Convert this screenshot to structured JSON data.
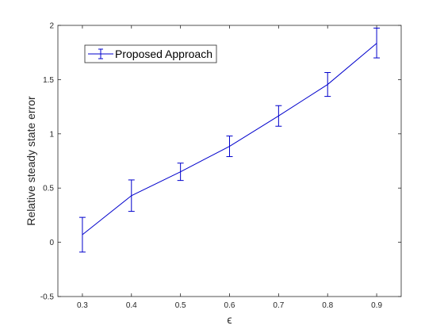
{
  "colors": {
    "series": "#0000cc",
    "axis": "#262626",
    "background": "#ffffff"
  },
  "chart_data": {
    "type": "line",
    "title": "",
    "xlabel": "ϵ",
    "ylabel": "Relative steady state error",
    "xlim": [
      0.25,
      0.95
    ],
    "ylim": [
      -0.5,
      2
    ],
    "xticks": [
      0.3,
      0.4,
      0.5,
      0.6,
      0.7,
      0.8,
      0.9
    ],
    "xtick_labels": [
      "0.3",
      "0.4",
      "0.5",
      "0.6",
      "0.7",
      "0.8",
      "0.9"
    ],
    "yticks": [
      -0.5,
      0,
      0.5,
      1,
      1.5,
      2
    ],
    "ytick_labels": [
      "-0.5",
      "0",
      "0.5",
      "1",
      "1.5",
      "2"
    ],
    "grid": false,
    "legend_position": "top-left",
    "series": [
      {
        "name": "Proposed Approach",
        "error_bars": true,
        "x": [
          0.3,
          0.4,
          0.5,
          0.6,
          0.7,
          0.8,
          0.9
        ],
        "y": [
          0.07,
          0.43,
          0.65,
          0.885,
          1.165,
          1.455,
          1.835
        ],
        "err_low": [
          0.16,
          0.145,
          0.08,
          0.095,
          0.095,
          0.11,
          0.135
        ],
        "err_high": [
          0.16,
          0.145,
          0.08,
          0.095,
          0.095,
          0.11,
          0.14
        ]
      }
    ]
  }
}
